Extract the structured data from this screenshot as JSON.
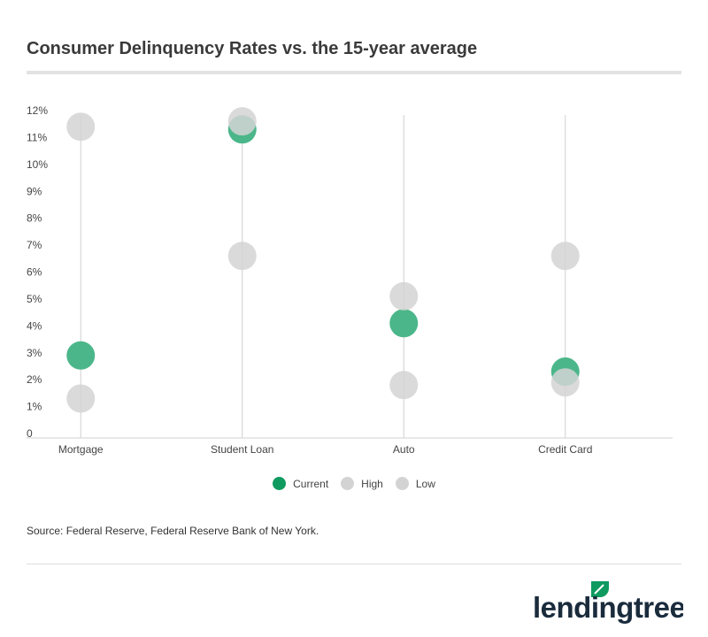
{
  "title": "Consumer Delinquency Rates vs. the 15-year average",
  "source": "Source: Federal Reserve, Federal Reserve Bank of New York.",
  "logo_text": "lendingtree",
  "colors": {
    "current": "#4bb68a",
    "current_legend": "#0f9a5f",
    "high": "#d3d3d3",
    "low": "#d3d3d3"
  },
  "chart_data": {
    "type": "scatter",
    "title": "Consumer Delinquency Rates vs. the 15-year average",
    "categories": [
      "Mortgage",
      "Student Loan",
      "Auto",
      "Credit Card"
    ],
    "series": [
      {
        "name": "Current",
        "values": [
          2.9,
          11.3,
          4.1,
          2.3
        ]
      },
      {
        "name": "High",
        "values": [
          11.4,
          11.6,
          5.1,
          6.6
        ]
      },
      {
        "name": "Low",
        "values": [
          1.3,
          6.6,
          1.8,
          1.9
        ]
      }
    ],
    "ylim": [
      0,
      12
    ],
    "yticks": [
      "0",
      "1%",
      "2%",
      "3%",
      "4%",
      "5%",
      "6%",
      "7%",
      "8%",
      "9%",
      "10%",
      "11%",
      "12%"
    ],
    "xlabel": "",
    "ylabel": "",
    "legend": "bottom",
    "grid": false
  }
}
